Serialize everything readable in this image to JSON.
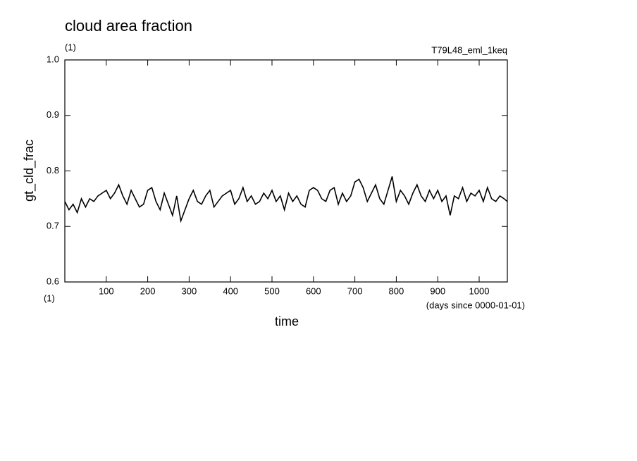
{
  "chart_data": {
    "type": "line",
    "title": "cloud area fraction",
    "subtitle": "(1)",
    "annotation": "T79L48_eml_1keq",
    "y_label": "gt_cld_frac",
    "x_label": "time",
    "x_unit": "(1)",
    "x_note": "(days since 0000-01-01)",
    "xlim": [
      0,
      1068
    ],
    "xticks": [
      100,
      200,
      300,
      400,
      500,
      600,
      700,
      800,
      900,
      1000
    ],
    "ylim": [
      0.6,
      1.0
    ],
    "yticks": [
      0.6,
      0.7,
      0.8,
      0.9,
      {
        "value": 1,
        "label": "1.0"
      }
    ],
    "x": [
      0,
      10,
      20,
      30,
      40,
      50,
      60,
      70,
      80,
      90,
      100,
      110,
      120,
      130,
      140,
      150,
      160,
      170,
      180,
      190,
      200,
      210,
      220,
      230,
      240,
      250,
      260,
      270,
      280,
      290,
      300,
      310,
      320,
      330,
      340,
      350,
      360,
      370,
      380,
      390,
      400,
      410,
      420,
      430,
      440,
      450,
      460,
      470,
      480,
      490,
      500,
      510,
      520,
      530,
      540,
      550,
      560,
      570,
      580,
      590,
      600,
      610,
      620,
      630,
      640,
      650,
      660,
      670,
      680,
      690,
      700,
      710,
      720,
      730,
      740,
      750,
      760,
      770,
      780,
      790,
      800,
      810,
      820,
      830,
      840,
      850,
      860,
      870,
      880,
      890,
      900,
      910,
      920,
      930,
      940,
      950,
      960,
      970,
      980,
      990,
      1000,
      1010,
      1020,
      1030,
      1040,
      1050,
      1060,
      1068
    ],
    "series": [
      {
        "color": "#000000",
        "values": [
          0.745,
          0.73,
          0.74,
          0.725,
          0.75,
          0.735,
          0.75,
          0.745,
          0.755,
          0.76,
          0.765,
          0.75,
          0.76,
          0.775,
          0.755,
          0.74,
          0.765,
          0.75,
          0.735,
          0.74,
          0.765,
          0.77,
          0.745,
          0.73,
          0.76,
          0.74,
          0.72,
          0.755,
          0.71,
          0.73,
          0.75,
          0.765,
          0.745,
          0.74,
          0.755,
          0.765,
          0.735,
          0.745,
          0.755,
          0.76,
          0.765,
          0.74,
          0.75,
          0.77,
          0.745,
          0.755,
          0.74,
          0.745,
          0.76,
          0.75,
          0.765,
          0.745,
          0.755,
          0.73,
          0.76,
          0.745,
          0.755,
          0.74,
          0.735,
          0.765,
          0.77,
          0.765,
          0.75,
          0.745,
          0.765,
          0.77,
          0.74,
          0.76,
          0.745,
          0.755,
          0.78,
          0.785,
          0.77,
          0.745,
          0.76,
          0.775,
          0.75,
          0.74,
          0.765,
          0.79,
          0.745,
          0.765,
          0.755,
          0.74,
          0.76,
          0.775,
          0.755,
          0.745,
          0.765,
          0.75,
          0.765,
          0.745,
          0.755,
          0.72,
          0.755,
          0.75,
          0.77,
          0.745,
          0.76,
          0.755,
          0.765,
          0.745,
          0.77,
          0.75,
          0.745,
          0.755,
          0.75,
          0.745
        ]
      }
    ]
  }
}
